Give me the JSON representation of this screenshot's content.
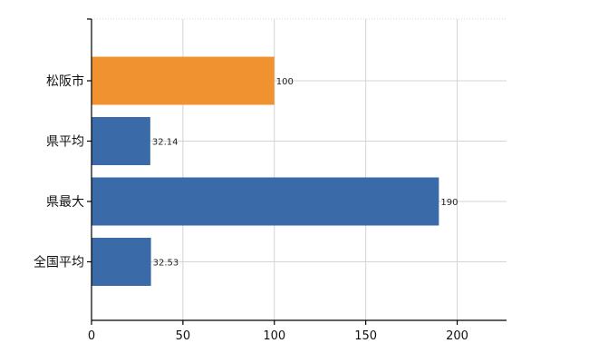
{
  "chart_data": {
    "type": "bar",
    "orientation": "horizontal",
    "categories": [
      "松阪市",
      "県平均",
      "県最大",
      "全国平均"
    ],
    "values": [
      100,
      32.14,
      190,
      32.53
    ],
    "data_labels": [
      "100",
      "32.14",
      "190",
      "32.53"
    ],
    "xlim": [
      0,
      227
    ],
    "x_ticks": [
      0,
      50,
      100,
      150,
      200
    ],
    "x_tick_labels": [
      "0",
      "50",
      "100",
      "150",
      "200"
    ],
    "grid": true,
    "bar_colors": [
      "#f0922f",
      "#3a6aa8",
      "#3a6aa8",
      "#3a6aa8"
    ],
    "legend": "none"
  }
}
